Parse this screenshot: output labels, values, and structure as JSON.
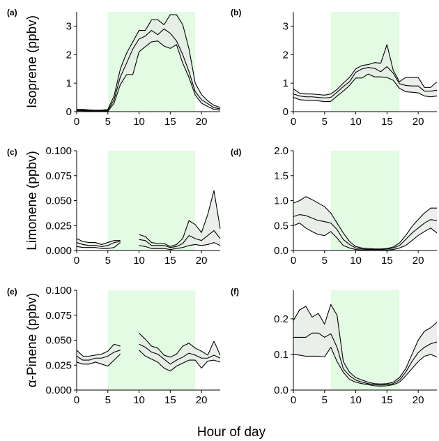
{
  "figure": {
    "xlabel": "Hour of day"
  },
  "chart_data": [
    {
      "panel": "(a)",
      "type": "area",
      "ylabel": "Isoprene (ppbv)",
      "ylim": [
        0,
        3.5
      ],
      "yticks": [
        0,
        1,
        2,
        3
      ],
      "ytick_labels": [
        "0",
        "1",
        "2",
        "3"
      ],
      "xlim": [
        0,
        23
      ],
      "xticks": [
        0,
        5,
        10,
        15,
        20
      ],
      "xtick_labels": [
        "0",
        "5",
        "10",
        "15",
        "20"
      ],
      "daylight": [
        5,
        19
      ],
      "shade_color": "#e2fbe2",
      "band_color": "#e6ece6",
      "x": [
        0,
        1,
        2,
        3,
        4,
        5,
        6,
        7,
        8,
        9,
        10,
        11,
        12,
        13,
        14,
        15,
        16,
        17,
        18,
        19,
        20,
        21,
        22,
        23
      ],
      "upper": [
        0.08,
        0.08,
        0.06,
        0.05,
        0.05,
        0.08,
        0.55,
        1.5,
        2.05,
        2.45,
        2.85,
        2.85,
        3.22,
        3.22,
        3.05,
        3.4,
        3.4,
        3.05,
        2.2,
        1.0,
        0.6,
        0.38,
        0.22,
        0.15
      ],
      "median": [
        0.05,
        0.05,
        0.04,
        0.03,
        0.03,
        0.04,
        0.42,
        1.22,
        1.7,
        2.2,
        2.55,
        2.65,
        2.85,
        2.7,
        2.9,
        2.75,
        2.48,
        2.0,
        1.4,
        0.7,
        0.42,
        0.28,
        0.14,
        0.1
      ],
      "lower": [
        0.03,
        0.03,
        0.02,
        0.01,
        0.01,
        0.01,
        0.3,
        0.95,
        1.3,
        1.3,
        2.1,
        2.28,
        2.45,
        2.48,
        2.3,
        2.22,
        2.35,
        1.7,
        1.2,
        0.58,
        0.3,
        0.18,
        0.08,
        0.05
      ]
    },
    {
      "panel": "(b)",
      "type": "area",
      "ylabel": "",
      "ylim": [
        0,
        3.5
      ],
      "yticks": [
        0,
        1,
        2,
        3
      ],
      "ytick_labels": [
        "0",
        "1",
        "2",
        "3"
      ],
      "xlim": [
        0,
        23
      ],
      "xticks": [
        0,
        5,
        10,
        15,
        20
      ],
      "xtick_labels": [
        "0",
        "5",
        "10",
        "15",
        "20"
      ],
      "daylight": [
        6,
        17
      ],
      "shade_color": "#e2fbe2",
      "band_color": "#e6ece6",
      "x": [
        0,
        1,
        2,
        3,
        4,
        5,
        6,
        7,
        8,
        9,
        10,
        11,
        12,
        13,
        14,
        15,
        16,
        17,
        18,
        19,
        20,
        21,
        22,
        23
      ],
      "upper": [
        0.8,
        0.65,
        0.62,
        0.62,
        0.6,
        0.58,
        0.62,
        0.78,
        1.0,
        1.2,
        1.5,
        1.62,
        1.65,
        1.72,
        1.7,
        2.35,
        1.45,
        1.05,
        1.2,
        1.2,
        1.2,
        0.85,
        0.85,
        1.05
      ],
      "median": [
        0.62,
        0.55,
        0.52,
        0.52,
        0.5,
        0.48,
        0.5,
        0.68,
        0.88,
        1.05,
        1.38,
        1.5,
        1.55,
        1.52,
        1.4,
        1.58,
        1.35,
        0.98,
        0.92,
        0.9,
        0.9,
        0.72,
        0.72,
        0.75
      ],
      "lower": [
        0.5,
        0.42,
        0.4,
        0.4,
        0.38,
        0.35,
        0.36,
        0.55,
        0.72,
        0.92,
        1.18,
        1.18,
        1.32,
        1.22,
        1.22,
        1.2,
        1.1,
        0.82,
        0.7,
        0.68,
        0.66,
        0.55,
        0.52,
        0.55
      ]
    },
    {
      "panel": "(c)",
      "type": "area",
      "ylabel": "Limonene (ppbv)",
      "ylim": [
        0,
        0.1
      ],
      "yticks": [
        0,
        0.025,
        0.05,
        0.075,
        0.1
      ],
      "ytick_labels": [
        "0.000",
        "0.025",
        "0.050",
        "0.075",
        "0.100"
      ],
      "xlim": [
        0,
        23
      ],
      "xticks": [
        0,
        5,
        10,
        15,
        20
      ],
      "xtick_labels": [
        "0",
        "5",
        "10",
        "15",
        "20"
      ],
      "daylight": [
        5,
        19
      ],
      "shade_color": "#e2fbe2",
      "band_color": "#e6ece6",
      "x": [
        0,
        1,
        2,
        3,
        4,
        5,
        6,
        7,
        8,
        9,
        10,
        11,
        12,
        13,
        14,
        15,
        16,
        17,
        18,
        19,
        20,
        21,
        22,
        23
      ],
      "upper": [
        0.012,
        0.009,
        0.008,
        0.008,
        0.006,
        0.008,
        0.01,
        0.01,
        null,
        null,
        0.016,
        0.014,
        0.008,
        0.007,
        0.007,
        0.004,
        0.006,
        0.012,
        0.03,
        0.026,
        0.018,
        0.036,
        0.06,
        0.022
      ],
      "median": [
        0.008,
        0.006,
        0.005,
        0.005,
        0.004,
        0.005,
        0.008,
        0.009,
        null,
        null,
        0.011,
        0.01,
        0.005,
        0.005,
        0.005,
        0.003,
        0.004,
        0.007,
        0.015,
        0.012,
        0.01,
        0.015,
        0.02,
        0.012
      ],
      "lower": [
        0.004,
        0.003,
        0.003,
        0.003,
        0.002,
        0.002,
        0.003,
        0.008,
        null,
        null,
        0.005,
        0.004,
        0.002,
        0.002,
        0.002,
        0.001,
        0.002,
        0.003,
        0.005,
        0.006,
        0.005,
        0.006,
        0.008,
        0.005
      ]
    },
    {
      "panel": "(d)",
      "type": "area",
      "ylabel": "",
      "ylim": [
        0,
        2.0
      ],
      "yticks": [
        0,
        0.5,
        1.0,
        1.5,
        2.0
      ],
      "ytick_labels": [
        "0.0",
        "0.5",
        "1.0",
        "1.5",
        "2.0"
      ],
      "xlim": [
        0,
        23
      ],
      "xticks": [
        0,
        5,
        10,
        15,
        20
      ],
      "xtick_labels": [
        "0",
        "5",
        "10",
        "15",
        "20"
      ],
      "daylight": [
        6,
        17
      ],
      "shade_color": "#e2fbe2",
      "band_color": "#e6ece6",
      "x": [
        0,
        1,
        2,
        3,
        4,
        5,
        6,
        7,
        8,
        9,
        10,
        11,
        12,
        13,
        14,
        15,
        16,
        17,
        18,
        19,
        20,
        21,
        22,
        23
      ],
      "upper": [
        0.95,
        1.0,
        1.08,
        1.02,
        0.95,
        0.88,
        0.75,
        0.55,
        0.35,
        0.18,
        0.08,
        0.05,
        0.04,
        0.03,
        0.03,
        0.04,
        0.07,
        0.15,
        0.3,
        0.48,
        0.62,
        0.75,
        0.85,
        0.85
      ],
      "median": [
        0.68,
        0.72,
        0.7,
        0.65,
        0.6,
        0.58,
        0.55,
        0.42,
        0.22,
        0.12,
        0.05,
        0.03,
        0.02,
        0.02,
        0.02,
        0.03,
        0.05,
        0.1,
        0.22,
        0.35,
        0.45,
        0.55,
        0.62,
        0.6
      ],
      "lower": [
        0.5,
        0.55,
        0.45,
        0.38,
        0.32,
        0.3,
        0.38,
        0.25,
        0.1,
        0.05,
        0.02,
        0.01,
        0.01,
        0.01,
        0.01,
        0.01,
        0.02,
        0.05,
        0.1,
        0.2,
        0.3,
        0.38,
        0.45,
        0.35
      ]
    },
    {
      "panel": "(e)",
      "type": "area",
      "ylabel": "α-Pinene (ppbv)",
      "ylim": [
        0,
        0.1
      ],
      "yticks": [
        0,
        0.025,
        0.05,
        0.075,
        0.1
      ],
      "ytick_labels": [
        "0.000",
        "0.025",
        "0.050",
        "0.075",
        "0.100"
      ],
      "xlim": [
        0,
        23
      ],
      "xticks": [
        0,
        5,
        10,
        15,
        20
      ],
      "xtick_labels": [
        "0",
        "5",
        "10",
        "15",
        "20"
      ],
      "daylight": [
        5,
        19
      ],
      "shade_color": "#e2fbe2",
      "band_color": "#e6ece6",
      "x": [
        0,
        1,
        2,
        3,
        4,
        5,
        6,
        7,
        8,
        9,
        10,
        11,
        12,
        13,
        14,
        15,
        16,
        17,
        18,
        19,
        20,
        21,
        22,
        23
      ],
      "upper": [
        0.04,
        0.034,
        0.034,
        0.035,
        0.036,
        0.039,
        0.046,
        0.044,
        null,
        null,
        0.057,
        0.051,
        0.044,
        0.042,
        0.035,
        0.033,
        0.036,
        0.044,
        0.047,
        0.042,
        0.039,
        0.035,
        0.049,
        0.035
      ],
      "median": [
        0.034,
        0.03,
        0.03,
        0.032,
        0.032,
        0.034,
        0.038,
        0.04,
        null,
        null,
        0.046,
        0.043,
        0.038,
        0.036,
        0.031,
        0.026,
        0.03,
        0.033,
        0.037,
        0.035,
        0.032,
        0.032,
        0.035,
        0.032
      ],
      "lower": [
        0.028,
        0.026,
        0.026,
        0.028,
        0.026,
        0.024,
        0.03,
        0.036,
        null,
        null,
        0.04,
        0.034,
        0.031,
        0.028,
        0.022,
        0.019,
        0.024,
        0.027,
        0.03,
        0.03,
        0.022,
        0.029,
        0.03,
        0.028
      ]
    },
    {
      "panel": "(f)",
      "type": "area",
      "ylabel": "",
      "ylim": [
        0,
        0.28
      ],
      "yticks": [
        0,
        0.1,
        0.2
      ],
      "ytick_labels": [
        "0.0",
        "0.1",
        "0.2"
      ],
      "xlim": [
        0,
        23
      ],
      "xticks": [
        0,
        5,
        10,
        15,
        20
      ],
      "xtick_labels": [
        "0",
        "5",
        "10",
        "15",
        "20"
      ],
      "daylight": [
        6,
        17
      ],
      "shade_color": "#e2fbe2",
      "band_color": "#e6ece6",
      "x": [
        0,
        1,
        2,
        3,
        4,
        5,
        6,
        7,
        8,
        9,
        10,
        11,
        12,
        13,
        14,
        15,
        16,
        17,
        18,
        19,
        20,
        21,
        22,
        23
      ],
      "upper": [
        0.195,
        0.225,
        0.235,
        0.205,
        0.215,
        0.185,
        0.24,
        0.21,
        0.08,
        0.05,
        0.035,
        0.028,
        0.022,
        0.018,
        0.017,
        0.018,
        0.022,
        0.035,
        0.06,
        0.1,
        0.14,
        0.165,
        0.175,
        0.19
      ],
      "median": [
        0.148,
        0.148,
        0.148,
        0.16,
        0.16,
        0.148,
        0.158,
        0.12,
        0.06,
        0.04,
        0.028,
        0.022,
        0.018,
        0.015,
        0.014,
        0.015,
        0.018,
        0.028,
        0.05,
        0.08,
        0.105,
        0.12,
        0.13,
        0.135
      ],
      "lower": [
        0.1,
        0.098,
        0.095,
        0.095,
        0.095,
        0.093,
        0.12,
        0.08,
        0.05,
        0.03,
        0.022,
        0.018,
        0.015,
        0.012,
        0.011,
        0.012,
        0.015,
        0.022,
        0.04,
        0.06,
        0.08,
        0.095,
        0.1,
        0.093
      ]
    }
  ]
}
